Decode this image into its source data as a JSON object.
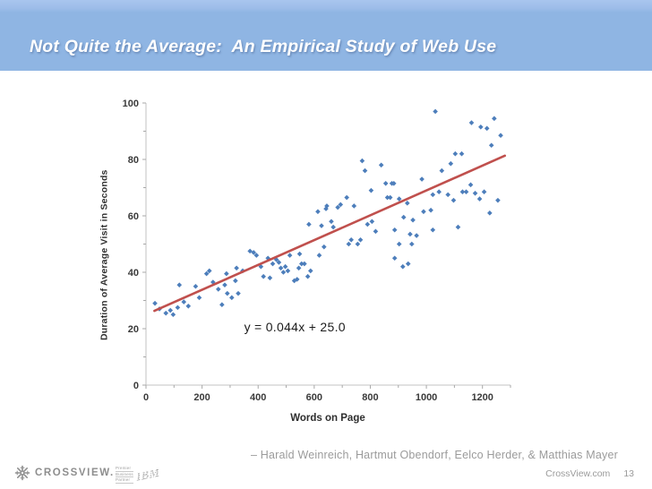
{
  "slide": {
    "title": "Not Quite the Average:  An Empirical Study of Web Use",
    "attribution": "– Harald Weinreich, Hartmut Obendorf, Eelco Herder, & Matthias Mayer",
    "footer": {
      "brand": "CROSSVIEW.",
      "partner_mark": {
        "lines": [
          "Premier",
          "Business",
          "Partner"
        ],
        "logo": "IBM"
      },
      "website": "CrossView.com",
      "page_number": "13"
    },
    "colors": {
      "header_blue": "#8fb5e3",
      "header_blue_light": "#a9c6ee",
      "footer_gray": "#9b9b9b"
    }
  },
  "chart_data": {
    "type": "scatter",
    "title": "",
    "xlabel": "Words on Page",
    "ylabel": "Duration of Average Visit in Seconds",
    "xlim": [
      0,
      1300
    ],
    "ylim": [
      0,
      100
    ],
    "x_major_ticks": [
      0,
      200,
      400,
      600,
      800,
      1000,
      1200
    ],
    "x_minor_step": 100,
    "y_major_ticks": [
      0,
      20,
      40,
      60,
      80,
      100
    ],
    "y_minor_step": 10,
    "grid": false,
    "legend": "none",
    "point_color": "#4d7ebb",
    "trend_color": "#c0504d",
    "axis_color": "#c3c3c3",
    "tick_color": "#a8a8a8",
    "tick_label_color": "#3a3a3a",
    "points": [
      [
        32,
        29
      ],
      [
        48,
        27
      ],
      [
        71,
        25.5
      ],
      [
        87,
        26.5
      ],
      [
        97,
        25
      ],
      [
        113,
        27.5
      ],
      [
        119,
        35.5
      ],
      [
        135,
        29.5
      ],
      [
        151,
        28
      ],
      [
        177,
        35
      ],
      [
        190,
        31
      ],
      [
        216,
        39.5
      ],
      [
        226,
        40.5
      ],
      [
        239,
        36.5
      ],
      [
        258,
        34
      ],
      [
        271,
        28.5
      ],
      [
        281,
        35.5
      ],
      [
        287,
        39.5
      ],
      [
        290,
        32.5
      ],
      [
        306,
        31
      ],
      [
        319,
        37
      ],
      [
        323,
        41.5
      ],
      [
        329,
        32.5
      ],
      [
        345,
        40.5
      ],
      [
        371,
        47.5
      ],
      [
        384,
        47
      ],
      [
        394,
        46
      ],
      [
        410,
        42
      ],
      [
        419,
        38.5
      ],
      [
        435,
        45
      ],
      [
        442,
        38
      ],
      [
        452,
        43
      ],
      [
        465,
        44.5
      ],
      [
        474,
        43.5
      ],
      [
        481,
        41.5
      ],
      [
        490,
        40
      ],
      [
        497,
        42
      ],
      [
        506,
        40.5
      ],
      [
        513,
        46
      ],
      [
        529,
        37
      ],
      [
        539,
        37.5
      ],
      [
        545,
        41.5
      ],
      [
        548,
        46.5
      ],
      [
        555,
        43
      ],
      [
        565,
        43
      ],
      [
        577,
        38.5
      ],
      [
        581,
        57
      ],
      [
        587,
        40.5
      ],
      [
        613,
        61.5
      ],
      [
        618,
        46
      ],
      [
        626,
        56.5
      ],
      [
        635,
        49
      ],
      [
        642,
        62.5
      ],
      [
        645,
        63.5
      ],
      [
        661,
        58
      ],
      [
        668,
        56
      ],
      [
        684,
        63
      ],
      [
        694,
        64
      ],
      [
        716,
        66.5
      ],
      [
        723,
        50
      ],
      [
        732,
        51.5
      ],
      [
        742,
        63.5
      ],
      [
        755,
        50
      ],
      [
        765,
        51.5
      ],
      [
        771,
        79.5
      ],
      [
        781,
        76
      ],
      [
        790,
        57
      ],
      [
        803,
        69
      ],
      [
        806,
        58
      ],
      [
        819,
        54.5
      ],
      [
        839,
        78
      ],
      [
        855,
        71.5
      ],
      [
        861,
        66.5
      ],
      [
        871,
        66.5
      ],
      [
        877,
        71.5
      ],
      [
        884,
        71.5
      ],
      [
        887,
        55
      ],
      [
        887,
        45
      ],
      [
        903,
        66
      ],
      [
        903,
        50
      ],
      [
        916,
        42
      ],
      [
        919,
        59.5
      ],
      [
        932,
        64.5
      ],
      [
        935,
        43
      ],
      [
        942,
        53.5
      ],
      [
        948,
        50
      ],
      [
        952,
        58.5
      ],
      [
        965,
        53
      ],
      [
        984,
        73
      ],
      [
        990,
        61.5
      ],
      [
        1016,
        62
      ],
      [
        1023,
        67.5
      ],
      [
        1023,
        55
      ],
      [
        1032,
        97
      ],
      [
        1045,
        68.5
      ],
      [
        1055,
        76
      ],
      [
        1077,
        67.5
      ],
      [
        1087,
        78.5
      ],
      [
        1097,
        65.5
      ],
      [
        1103,
        82
      ],
      [
        1113,
        56
      ],
      [
        1126,
        82
      ],
      [
        1129,
        68.5
      ],
      [
        1142,
        68.5
      ],
      [
        1158,
        71
      ],
      [
        1161,
        93
      ],
      [
        1174,
        68
      ],
      [
        1190,
        66
      ],
      [
        1194,
        91.5
      ],
      [
        1206,
        68.5
      ],
      [
        1216,
        91
      ],
      [
        1226,
        61
      ],
      [
        1232,
        85
      ],
      [
        1242,
        94.5
      ],
      [
        1255,
        65.5
      ],
      [
        1265,
        88.5
      ]
    ],
    "trendline": {
      "equation": "y = 0.044x + 25.0",
      "slope": 0.044,
      "intercept": 25.0,
      "x_start": 30,
      "x_end": 1280
    },
    "annotation": {
      "text": "y = 0.044x + 25.0",
      "x": 350,
      "y": 18.5
    }
  }
}
